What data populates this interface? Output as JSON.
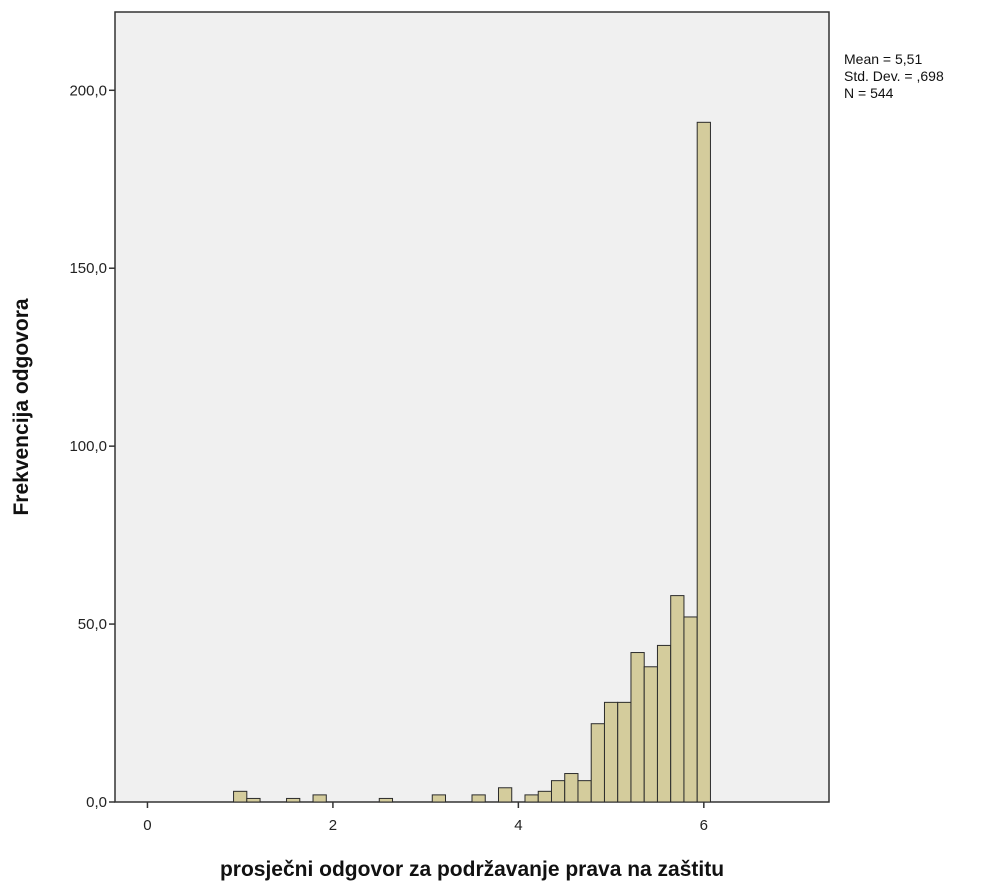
{
  "chart_data": {
    "type": "bar",
    "xlabel": "prosječni odgovor za podržavanje prava na zaštitu",
    "ylabel": "Frekvencija odgovora",
    "xlim": [
      -0.35,
      7.35
    ],
    "ylim": [
      0,
      222
    ],
    "x_ticks": [
      0,
      2,
      4,
      6
    ],
    "x_tick_labels": [
      "0",
      "2",
      "4",
      "6"
    ],
    "y_ticks": [
      0,
      50,
      100,
      150,
      200
    ],
    "y_tick_labels": [
      "0,0",
      "50,0",
      "100,0",
      "150,0",
      "200,0"
    ],
    "bin_width": 0.1429,
    "bins": [
      {
        "x0": 0.9286,
        "value": 3
      },
      {
        "x0": 1.0714,
        "value": 1
      },
      {
        "x0": 1.5,
        "value": 1
      },
      {
        "x0": 1.7857,
        "value": 2
      },
      {
        "x0": 2.5,
        "value": 1
      },
      {
        "x0": 3.0714,
        "value": 2
      },
      {
        "x0": 3.5,
        "value": 2
      },
      {
        "x0": 3.7857,
        "value": 4
      },
      {
        "x0": 4.0714,
        "value": 2
      },
      {
        "x0": 4.2143,
        "value": 3
      },
      {
        "x0": 4.3571,
        "value": 6
      },
      {
        "x0": 4.5,
        "value": 8
      },
      {
        "x0": 4.6429,
        "value": 6
      },
      {
        "x0": 4.7857,
        "value": 22
      },
      {
        "x0": 4.9286,
        "value": 28
      },
      {
        "x0": 5.0714,
        "value": 28
      },
      {
        "x0": 5.2143,
        "value": 42
      },
      {
        "x0": 5.3571,
        "value": 38
      },
      {
        "x0": 5.5,
        "value": 44
      },
      {
        "x0": 5.6429,
        "value": 58
      },
      {
        "x0": 5.7857,
        "value": 52
      },
      {
        "x0": 5.9286,
        "value": 191
      }
    ],
    "stats": [
      "Mean = 5,51",
      "Std. Dev. = ,698",
      "N = 544"
    ],
    "colors": {
      "plot_background": "#f0f0f0",
      "bar_fill": "#d4cc9c",
      "bar_stroke": "#2b2b2b",
      "axis": "#333333"
    }
  }
}
